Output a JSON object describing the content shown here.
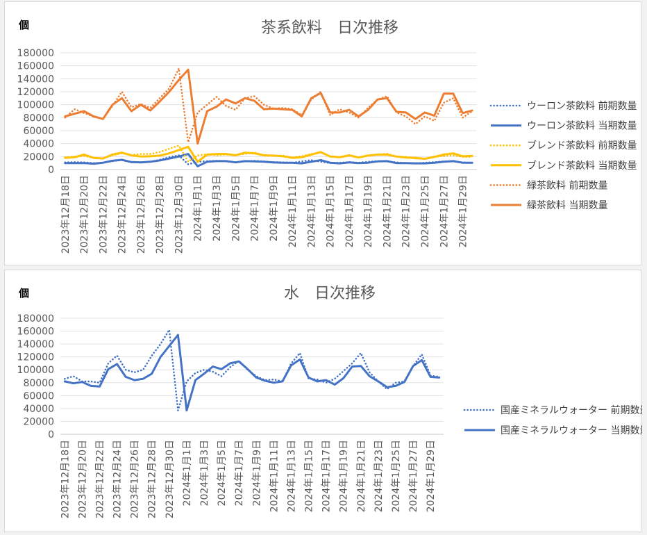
{
  "colors": {
    "oolong": "#4472c4",
    "blend": "#ffc000",
    "green": "#ed7d31",
    "water": "#4472c4"
  },
  "chart_data": [
    {
      "type": "line",
      "title": "茶系飲料　日次推移",
      "unit": "個",
      "ylim": [
        0,
        180000
      ],
      "ytick_step": 20000,
      "ytick_labels": [
        "0",
        "20000",
        "40000",
        "60000",
        "80000",
        "100000",
        "120000",
        "140000",
        "160000",
        "180000"
      ],
      "x": [
        "2023年12月18日",
        "2023年12月19日",
        "2023年12月20日",
        "2023年12月21日",
        "2023年12月22日",
        "2023年12月23日",
        "2023年12月24日",
        "2023年12月25日",
        "2023年12月26日",
        "2023年12月27日",
        "2023年12月28日",
        "2023年12月29日",
        "2023年12月30日",
        "2023年12月31日",
        "2024年1月1日",
        "2024年1月2日",
        "2024年1月3日",
        "2024年1月4日",
        "2024年1月5日",
        "2024年1月6日",
        "2024年1月7日",
        "2024年1月8日",
        "2024年1月9日",
        "2024年1月10日",
        "2024年1月11日",
        "2024年1月12日",
        "2024年1月13日",
        "2024年1月14日",
        "2024年1月15日",
        "2024年1月16日",
        "2024年1月17日",
        "2024年1月18日",
        "2024年1月19日",
        "2024年1月20日",
        "2024年1月21日",
        "2024年1月22日",
        "2024年1月23日",
        "2024年1月24日",
        "2024年1月25日",
        "2024年1月26日",
        "2024年1月27日",
        "2024年1月28日",
        "2024年1月29日",
        "2024年1月30日"
      ],
      "x_tick_labels": [
        "2023年12月18日",
        "2023年12月20日",
        "2023年12月22日",
        "2023年12月24日",
        "2023年12月26日",
        "2023年12月28日",
        "2023年12月30日",
        "2024年1月1日",
        "2024年1月3日",
        "2024年1月5日",
        "2024年1月7日",
        "2024年1月9日",
        "2024年1月11日",
        "2024年1月13日",
        "2024年1月15日",
        "2024年1月17日",
        "2024年1月19日",
        "2024年1月21日",
        "2024年1月23日",
        "2024年1月25日",
        "2024年1月27日",
        "2024年1月29日"
      ],
      "legend_position": "right",
      "grid": true,
      "series": [
        {
          "name": "ウーロン茶飲料 前期数量",
          "color": "#4472c4",
          "style": "dotted",
          "values": [
            11000,
            11500,
            11000,
            10000,
            10500,
            13000,
            14500,
            11000,
            11500,
            12000,
            15000,
            19000,
            22000,
            8000,
            12000,
            13000,
            13500,
            13000,
            11500,
            12500,
            13500,
            12500,
            11500,
            11000,
            10500,
            12500,
            14500,
            12000,
            10000,
            10500,
            11500,
            10500,
            12000,
            13000,
            12500,
            11000,
            10000,
            9500,
            10500,
            11500,
            12500,
            12500,
            11000,
            10500
          ]
        },
        {
          "name": "ウーロン茶飲料 当期数量",
          "color": "#4472c4",
          "style": "solid",
          "values": [
            10000,
            10000,
            10000,
            9000,
            10500,
            13500,
            15000,
            11500,
            11000,
            12000,
            14000,
            17000,
            20000,
            24000,
            5000,
            12000,
            13000,
            13000,
            11000,
            13000,
            12500,
            12000,
            11000,
            10500,
            10500,
            9500,
            12000,
            14500,
            10500,
            9500,
            11000,
            10000,
            10500,
            12500,
            13000,
            10000,
            10000,
            9500,
            9500,
            10500,
            12000,
            13000,
            10500,
            10500
          ]
        },
        {
          "name": "ブレンド茶飲料 前期数量",
          "color": "#ffc000",
          "style": "dotted",
          "values": [
            19000,
            20000,
            21000,
            18000,
            17500,
            22000,
            25000,
            22500,
            24000,
            24000,
            27000,
            32000,
            37000,
            12000,
            22000,
            23500,
            22000,
            23000,
            22500,
            24000,
            26500,
            22000,
            21000,
            21500,
            18500,
            20500,
            24000,
            26000,
            20000,
            19000,
            21000,
            19000,
            21500,
            23000,
            24500,
            20000,
            19500,
            17000,
            17000,
            19500,
            21000,
            22000,
            19500,
            19500
          ]
        },
        {
          "name": "ブレンド茶飲料 当期数量",
          "color": "#ffc000",
          "style": "solid",
          "values": [
            18000,
            19000,
            23000,
            18000,
            17000,
            23000,
            26000,
            22000,
            20000,
            20500,
            21500,
            25000,
            30000,
            35000,
            12000,
            23000,
            24000,
            24000,
            22000,
            26000,
            25000,
            22000,
            21500,
            20500,
            18000,
            19000,
            23000,
            27000,
            20000,
            19000,
            22000,
            18500,
            21500,
            23000,
            23000,
            20000,
            18500,
            18000,
            16500,
            19500,
            23000,
            25000,
            20500,
            21000
          ]
        },
        {
          "name": "緑茶飲料 前期数量",
          "color": "#ed7d31",
          "style": "dotted",
          "values": [
            80000,
            93000,
            87000,
            82000,
            78000,
            98000,
            120000,
            96000,
            101000,
            95000,
            110000,
            125000,
            156000,
            42000,
            88000,
            100000,
            112000,
            98000,
            92000,
            110000,
            113000,
            100000,
            94000,
            95000,
            93000,
            84000,
            108000,
            120000,
            84000,
            93000,
            88000,
            80000,
            95000,
            108000,
            113000,
            88000,
            82000,
            70000,
            82000,
            75000,
            103000,
            110000,
            80000,
            90000
          ]
        },
        {
          "name": "緑茶飲料 当期数量",
          "color": "#ed7d31",
          "style": "solid",
          "values": [
            82000,
            86000,
            90000,
            82000,
            78000,
            100000,
            110000,
            90000,
            100000,
            91000,
            105000,
            120000,
            138000,
            154000,
            40000,
            90000,
            97000,
            108000,
            102000,
            110000,
            106000,
            93000,
            94000,
            93000,
            92000,
            82000,
            110000,
            118000,
            88000,
            88000,
            92000,
            82000,
            92000,
            108000,
            110000,
            89000,
            88000,
            78000,
            88000,
            83000,
            117000,
            117000,
            87000,
            91000
          ]
        }
      ]
    },
    {
      "type": "line",
      "title": "水　日次推移",
      "unit": "個",
      "ylim": [
        0,
        180000
      ],
      "ytick_step": 20000,
      "ytick_labels": [
        "0",
        "20000",
        "40000",
        "60000",
        "80000",
        "100000",
        "120000",
        "140000",
        "160000",
        "180000"
      ],
      "x": [
        "2023年12月18日",
        "2023年12月19日",
        "2023年12月20日",
        "2023年12月21日",
        "2023年12月22日",
        "2023年12月23日",
        "2023年12月24日",
        "2023年12月25日",
        "2023年12月26日",
        "2023年12月27日",
        "2023年12月28日",
        "2023年12月29日",
        "2023年12月30日",
        "2023年12月31日",
        "2024年1月1日",
        "2024年1月2日",
        "2024年1月3日",
        "2024年1月4日",
        "2024年1月5日",
        "2024年1月6日",
        "2024年1月7日",
        "2024年1月8日",
        "2024年1月9日",
        "2024年1月10日",
        "2024年1月11日",
        "2024年1月12日",
        "2024年1月13日",
        "2024年1月14日",
        "2024年1月15日",
        "2024年1月16日",
        "2024年1月17日",
        "2024年1月18日",
        "2024年1月19日",
        "2024年1月20日",
        "2024年1月21日",
        "2024年1月22日",
        "2024年1月23日",
        "2024年1月24日",
        "2024年1月25日",
        "2024年1月26日",
        "2024年1月27日",
        "2024年1月28日",
        "2024年1月29日",
        "2024年1月30日"
      ],
      "x_tick_labels": [
        "2023年12月18日",
        "2023年12月20日",
        "2023年12月22日",
        "2023年12月24日",
        "2023年12月26日",
        "2023年12月28日",
        "2023年12月30日",
        "2024年1月1日",
        "2024年1月3日",
        "2024年1月5日",
        "2024年1月7日",
        "2024年1月9日",
        "2024年1月11日",
        "2024年1月13日",
        "2024年1月15日",
        "2024年1月17日",
        "2024年1月19日",
        "2024年1月21日",
        "2024年1月23日",
        "2024年1月25日",
        "2024年1月27日",
        "2024年1月29日"
      ],
      "legend_position": "right",
      "grid": true,
      "series": [
        {
          "name": "国産ミネラルウォーター 前期数量",
          "color": "#4472c4",
          "style": "dotted",
          "values": [
            86000,
            90000,
            82000,
            82000,
            80000,
            110000,
            122000,
            100000,
            96000,
            100000,
            122000,
            140000,
            162000,
            37000,
            82000,
            95000,
            100000,
            97000,
            90000,
            104000,
            114000,
            100000,
            90000,
            84000,
            85000,
            82000,
            110000,
            126000,
            86000,
            85000,
            80000,
            86000,
            98000,
            110000,
            126000,
            96000,
            82000,
            70000,
            80000,
            82000,
            106000,
            124000,
            91000,
            89000
          ]
        },
        {
          "name": "国産ミネラルウォーター 当期数量",
          "color": "#4472c4",
          "style": "solid",
          "values": [
            82000,
            79000,
            81000,
            75000,
            74000,
            101000,
            109000,
            89000,
            84000,
            86000,
            94000,
            120000,
            137000,
            154000,
            37000,
            84000,
            94000,
            105000,
            101000,
            110000,
            113000,
            101000,
            88000,
            83000,
            80000,
            82000,
            107000,
            116000,
            88000,
            82000,
            84000,
            77000,
            87000,
            105000,
            106000,
            90000,
            82000,
            73000,
            75000,
            81000,
            106000,
            115000,
            89000,
            88000
          ]
        }
      ]
    }
  ]
}
